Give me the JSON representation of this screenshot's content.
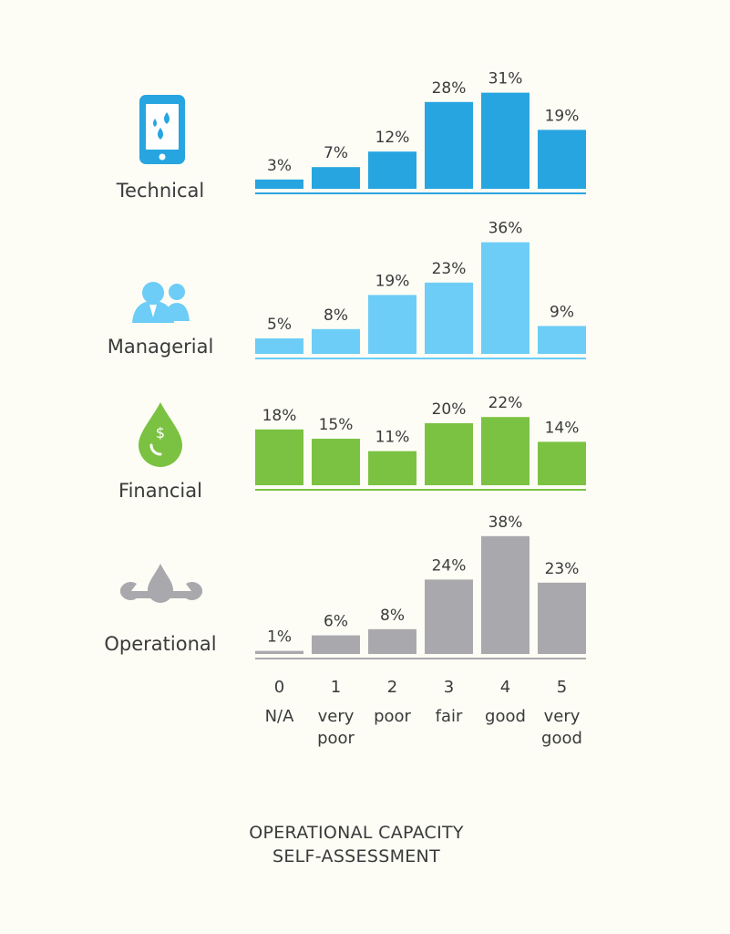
{
  "chart_data": {
    "type": "bar",
    "title": [
      "OPERATIONAL CAPACITY",
      "SELF-ASSESSMENT"
    ],
    "categories": [
      "0",
      "1",
      "2",
      "3",
      "4",
      "5"
    ],
    "category_labels": [
      [
        "N/A"
      ],
      [
        "very",
        "poor"
      ],
      [
        "poor"
      ],
      [
        "fair"
      ],
      [
        "good"
      ],
      [
        "very",
        "good"
      ]
    ],
    "value_suffix": "%",
    "series": [
      {
        "name": "Technical",
        "icon": "smartphone-icon",
        "color": "#27a5e0",
        "values": [
          3,
          7,
          12,
          28,
          31,
          19
        ]
      },
      {
        "name": "Managerial",
        "icon": "people-icon",
        "color": "#6dcdf6",
        "values": [
          5,
          8,
          19,
          23,
          36,
          9
        ]
      },
      {
        "name": "Financial",
        "icon": "money-drop-icon",
        "color": "#7cc242",
        "values": [
          18,
          15,
          11,
          20,
          22,
          14
        ]
      },
      {
        "name": "Operational",
        "icon": "wrench-drop-icon",
        "color": "#a9a9ad",
        "values": [
          1,
          6,
          8,
          24,
          38,
          23
        ]
      }
    ]
  }
}
